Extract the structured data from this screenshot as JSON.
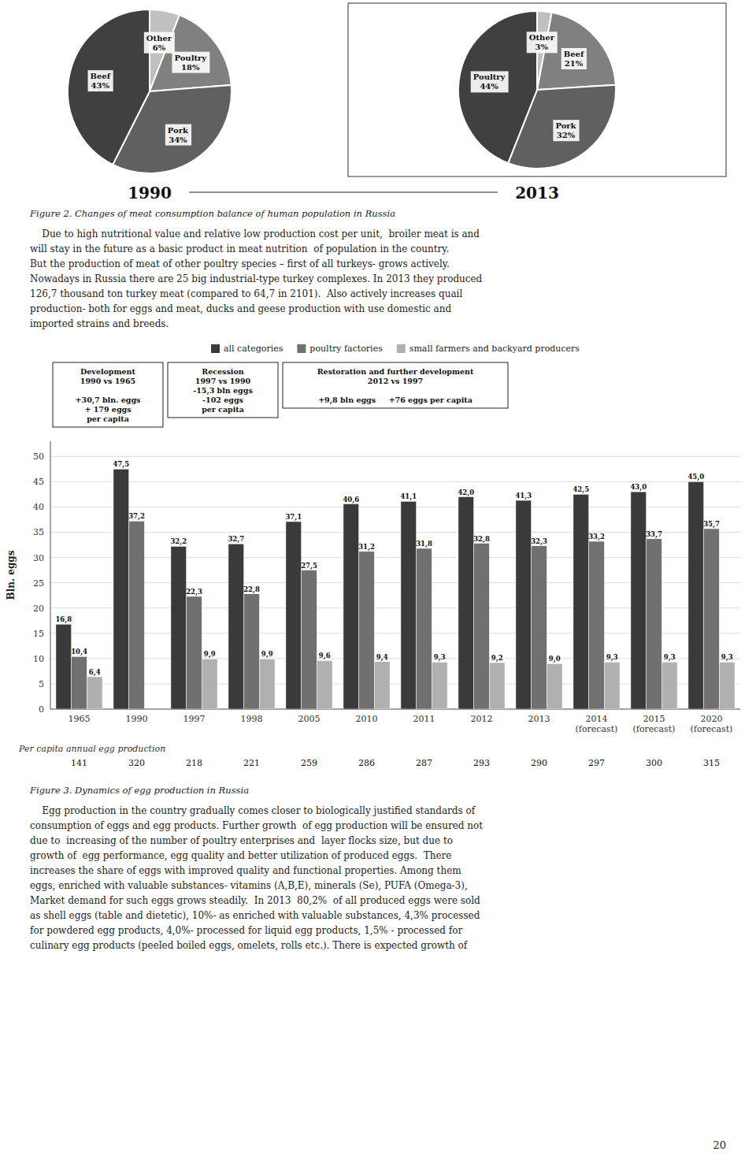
{
  "chart_data": [
    {
      "type": "pie",
      "title": "1990",
      "categories": [
        "Other",
        "Poultry",
        "Pork",
        "Beef"
      ],
      "values": [
        6,
        18,
        34,
        43
      ],
      "value_labels": [
        "6%",
        "18%",
        "34%",
        "43%"
      ],
      "colors": [
        "#c0c0c0",
        "#808080",
        "#606060",
        "#404040"
      ],
      "data_labels": true
    },
    {
      "type": "pie",
      "title": "2013",
      "categories": [
        "Other",
        "Beef",
        "Pork",
        "Poultry"
      ],
      "values": [
        3,
        21,
        32,
        44
      ],
      "value_labels": [
        "3%",
        "21%",
        "32%",
        "44%"
      ],
      "colors": [
        "#c0c0c0",
        "#808080",
        "#606060",
        "#404040"
      ],
      "data_labels": true
    },
    {
      "type": "bar",
      "y_label": "Bln. eggs",
      "categories": [
        "1965",
        "1990",
        "1997",
        "1998",
        "2005",
        "2010",
        "2011",
        "2012",
        "2013",
        "2014\n(forecast)",
        "2015\n(forecast)",
        "2020\n(forecast)"
      ],
      "series": [
        {
          "name": "all categories",
          "color": "#3a3a3a",
          "values": [
            16.8,
            47.5,
            32.2,
            32.7,
            37.1,
            40.6,
            41.1,
            42.0,
            41.3,
            42.5,
            43.0,
            45.0
          ],
          "value_labels": [
            "16,8",
            "47,5",
            "32,2",
            "32,7",
            "37,1",
            "40,6",
            "41,1",
            "42,0",
            "41,3",
            "42,5",
            "43,0",
            "45,0"
          ]
        },
        {
          "name": "poultry factories",
          "color": "#707070",
          "values": [
            10.4,
            37.2,
            22.3,
            22.8,
            27.5,
            31.2,
            31.8,
            32.8,
            32.3,
            33.2,
            33.7,
            35.7
          ],
          "value_labels": [
            "10,4",
            "37,2",
            "22,3",
            "22,8",
            "27,5",
            "31,2",
            "31,8",
            "32,8",
            "32,3",
            "33,2",
            "33,7",
            "35,7"
          ]
        },
        {
          "name": "small farmers and backyard producers",
          "color": "#b0b0b0",
          "values": [
            6.4,
            null,
            9.9,
            9.9,
            9.6,
            9.4,
            9.3,
            9.2,
            9.0,
            9.3,
            9.3,
            9.3
          ],
          "value_labels": [
            "6,4",
            null,
            "9,9",
            "9,9",
            "9,6",
            "9,4",
            "9,3",
            "9,2",
            "9,0",
            "9,3",
            "9,3",
            "9,3"
          ]
        }
      ],
      "ylim": [
        0,
        53
      ],
      "yticks": [
        0,
        5,
        10,
        15,
        20,
        25,
        30,
        35,
        40,
        45,
        50
      ],
      "grid": true,
      "legend": "top",
      "data_labels": true,
      "annotations": [
        "Development\n1990 vs 1965\n\n+30,7 bln. eggs\n+ 179 eggs\nper capita",
        "Recession\n1997 vs 1990\n-15,3 bln eggs\n-102 eggs\nper capita",
        "Restoration and further development\n2012 vs 1997\n\n+9,8 bln eggs     +76 eggs per capita"
      ],
      "per_capita_label": "Per capita  annual egg production",
      "per_capita": [
        141,
        320,
        218,
        221,
        259,
        286,
        287,
        293,
        290,
        297,
        300,
        315
      ]
    }
  ],
  "page": {
    "fig2_caption": "Figure 2. Changes of meat consumption balance of human population in Russia",
    "paragraph1": "    Due to high nutritional value and relative low production cost per unit,  broiler meat is and\nwill stay in the future as a basic product in meat nutrition  of population in the country.\nBut the production of meat of other poultry species – first of all turkeys- grows actively.\nNowadays in Russia there are 25 big industrial-type turkey complexes. In 2013 they produced\n126,7 thousand ton turkey meat (compared to 64,7 in 2101).  Also actively increases quail\nproduction- both for eggs and meat, ducks and geese production with use domestic and\nimported strains and breeds.",
    "fig3_caption": "Figure 3. Dynamics of egg production in Russia",
    "paragraph2": "    Egg production in the country gradually comes closer to biologically justified standards of\nconsumption of eggs and egg products. Further growth  of egg production will be ensured not\ndue to  increasing of the number of poultry enterprises and  layer flocks size, but due to\ngrowth of  egg performance, egg quality and better utilization of produced eggs.  There\nincreases the share of eggs with improved quality and functional properties. Among them\neggs, enriched with valuable substances- vitamins (A,B,E), minerals (Se), PUFA (Omega-3),\nMarket demand for such eggs grows steadily.  In 2013  80,2%  of all produced eggs were sold\nas shell eggs (table and dietetic), 10%- as enriched with valuable substances, 4,3% processed\nfor powdered egg products, 4,0%- processed for liquid egg products, 1,5% - processed for\nculinary egg products (peeled boiled eggs, omelets, rolls etc.). There is expected growth of",
    "page_number": "20"
  }
}
